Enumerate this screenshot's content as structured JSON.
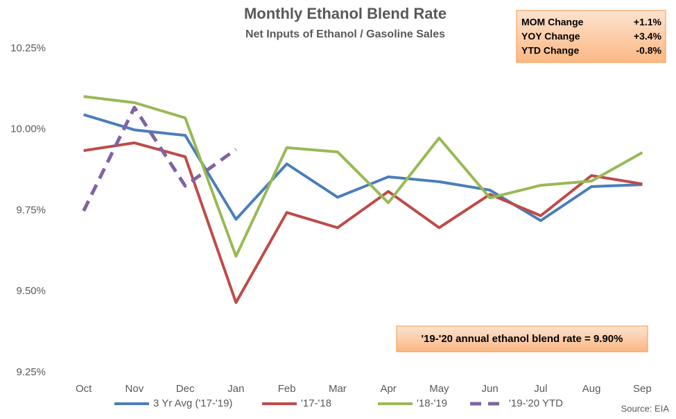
{
  "chart_data": {
    "type": "line",
    "title": "Monthly Ethanol Blend Rate",
    "subtitle": "Net Inputs of Ethanol / Gasoline Sales",
    "categories": [
      "Oct",
      "Nov",
      "Dec",
      "Jan",
      "Feb",
      "Mar",
      "Apr",
      "May",
      "Jun",
      "Jul",
      "Aug",
      "Sep"
    ],
    "series": [
      {
        "name": "3 Yr Avg ('17-'19)",
        "color": "#4a7ebb",
        "style": "solid",
        "values": [
          10.046,
          9.999,
          9.982,
          9.723,
          9.894,
          9.791,
          9.854,
          9.839,
          9.813,
          9.719,
          9.824,
          9.83
        ]
      },
      {
        "name": "'17-'18",
        "color": "#be4b48",
        "style": "solid",
        "values": [
          9.935,
          9.959,
          9.916,
          9.466,
          9.744,
          9.697,
          9.809,
          9.697,
          9.8,
          9.734,
          9.858,
          9.832
        ]
      },
      {
        "name": "'18-'19",
        "color": "#98b954",
        "style": "solid",
        "values": [
          10.102,
          10.083,
          10.036,
          9.609,
          9.944,
          9.931,
          9.774,
          9.974,
          9.789,
          9.828,
          9.841,
          9.929
        ]
      },
      {
        "name": "'19-'20 YTD",
        "color": "#7f63a2",
        "style": "dashed",
        "values": [
          9.749,
          10.068,
          9.826,
          9.939,
          null,
          null,
          null,
          null,
          null,
          null,
          null,
          null
        ]
      }
    ],
    "ylim": [
      9.25,
      10.25
    ],
    "yticks": [
      {
        "value": 9.25,
        "label": "9.25%"
      },
      {
        "value": 9.5,
        "label": "9.50%"
      },
      {
        "value": 9.75,
        "label": "9.75%"
      },
      {
        "value": 10.0,
        "label": "10.00%"
      },
      {
        "value": 10.25,
        "label": "10.25%"
      }
    ],
    "grid": false,
    "legend": "bottom",
    "stats": [
      [
        "MOM Change",
        "+1.1%"
      ],
      [
        "YOY Change",
        "+3.4%"
      ],
      [
        "YTD Change",
        "-0.8%"
      ]
    ],
    "annotation": "'19-'20 annual ethanol blend rate = 9.90%",
    "source": "Source: EIA"
  }
}
